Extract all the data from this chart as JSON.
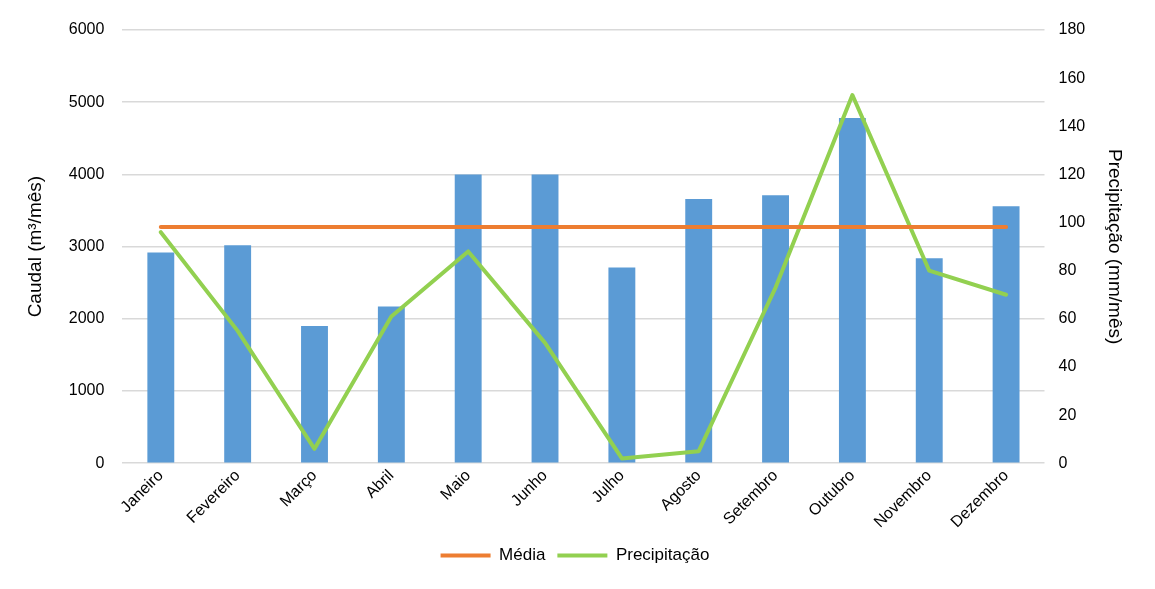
{
  "chart_data": {
    "type": "bar",
    "categories": [
      "Janeiro",
      "Fevereiro",
      "Março",
      "Abril",
      "Maio",
      "Junho",
      "Julho",
      "Agosto",
      "Setembro",
      "Outubro",
      "Novembro",
      "Dezembro"
    ],
    "ylabel": "Caudal (m³/mês)",
    "y2label": "Precipitação (mm/mês)",
    "ylim": [
      0,
      6000
    ],
    "yticks": [
      0,
      1000,
      2000,
      3000,
      4000,
      5000,
      6000
    ],
    "y2lim": [
      0,
      180
    ],
    "y2ticks": [
      0,
      20,
      40,
      60,
      80,
      100,
      120,
      140,
      160,
      180
    ],
    "grid": "y",
    "legend": "bottom",
    "marker": "none",
    "line_style": "solid",
    "series": [
      {
        "color": "#5b9bd5",
        "values": [
          2920,
          3020,
          1900,
          2170,
          4000,
          4000,
          2710,
          3660,
          3710,
          4780,
          2840,
          3560
        ]
      },
      {
        "type": "line",
        "name": "Média",
        "color": "#ed7d31",
        "values": [
          3270,
          3270,
          3270,
          3270,
          3270,
          3270,
          3270,
          3270,
          3270,
          3270,
          3270,
          3270
        ]
      },
      {
        "type": "line",
        "name": "Precipitação",
        "color": "#92d050",
        "axis": "y2",
        "values": [
          96,
          55,
          6,
          61,
          88,
          50,
          2,
          5,
          73,
          153,
          80,
          70
        ]
      }
    ]
  }
}
